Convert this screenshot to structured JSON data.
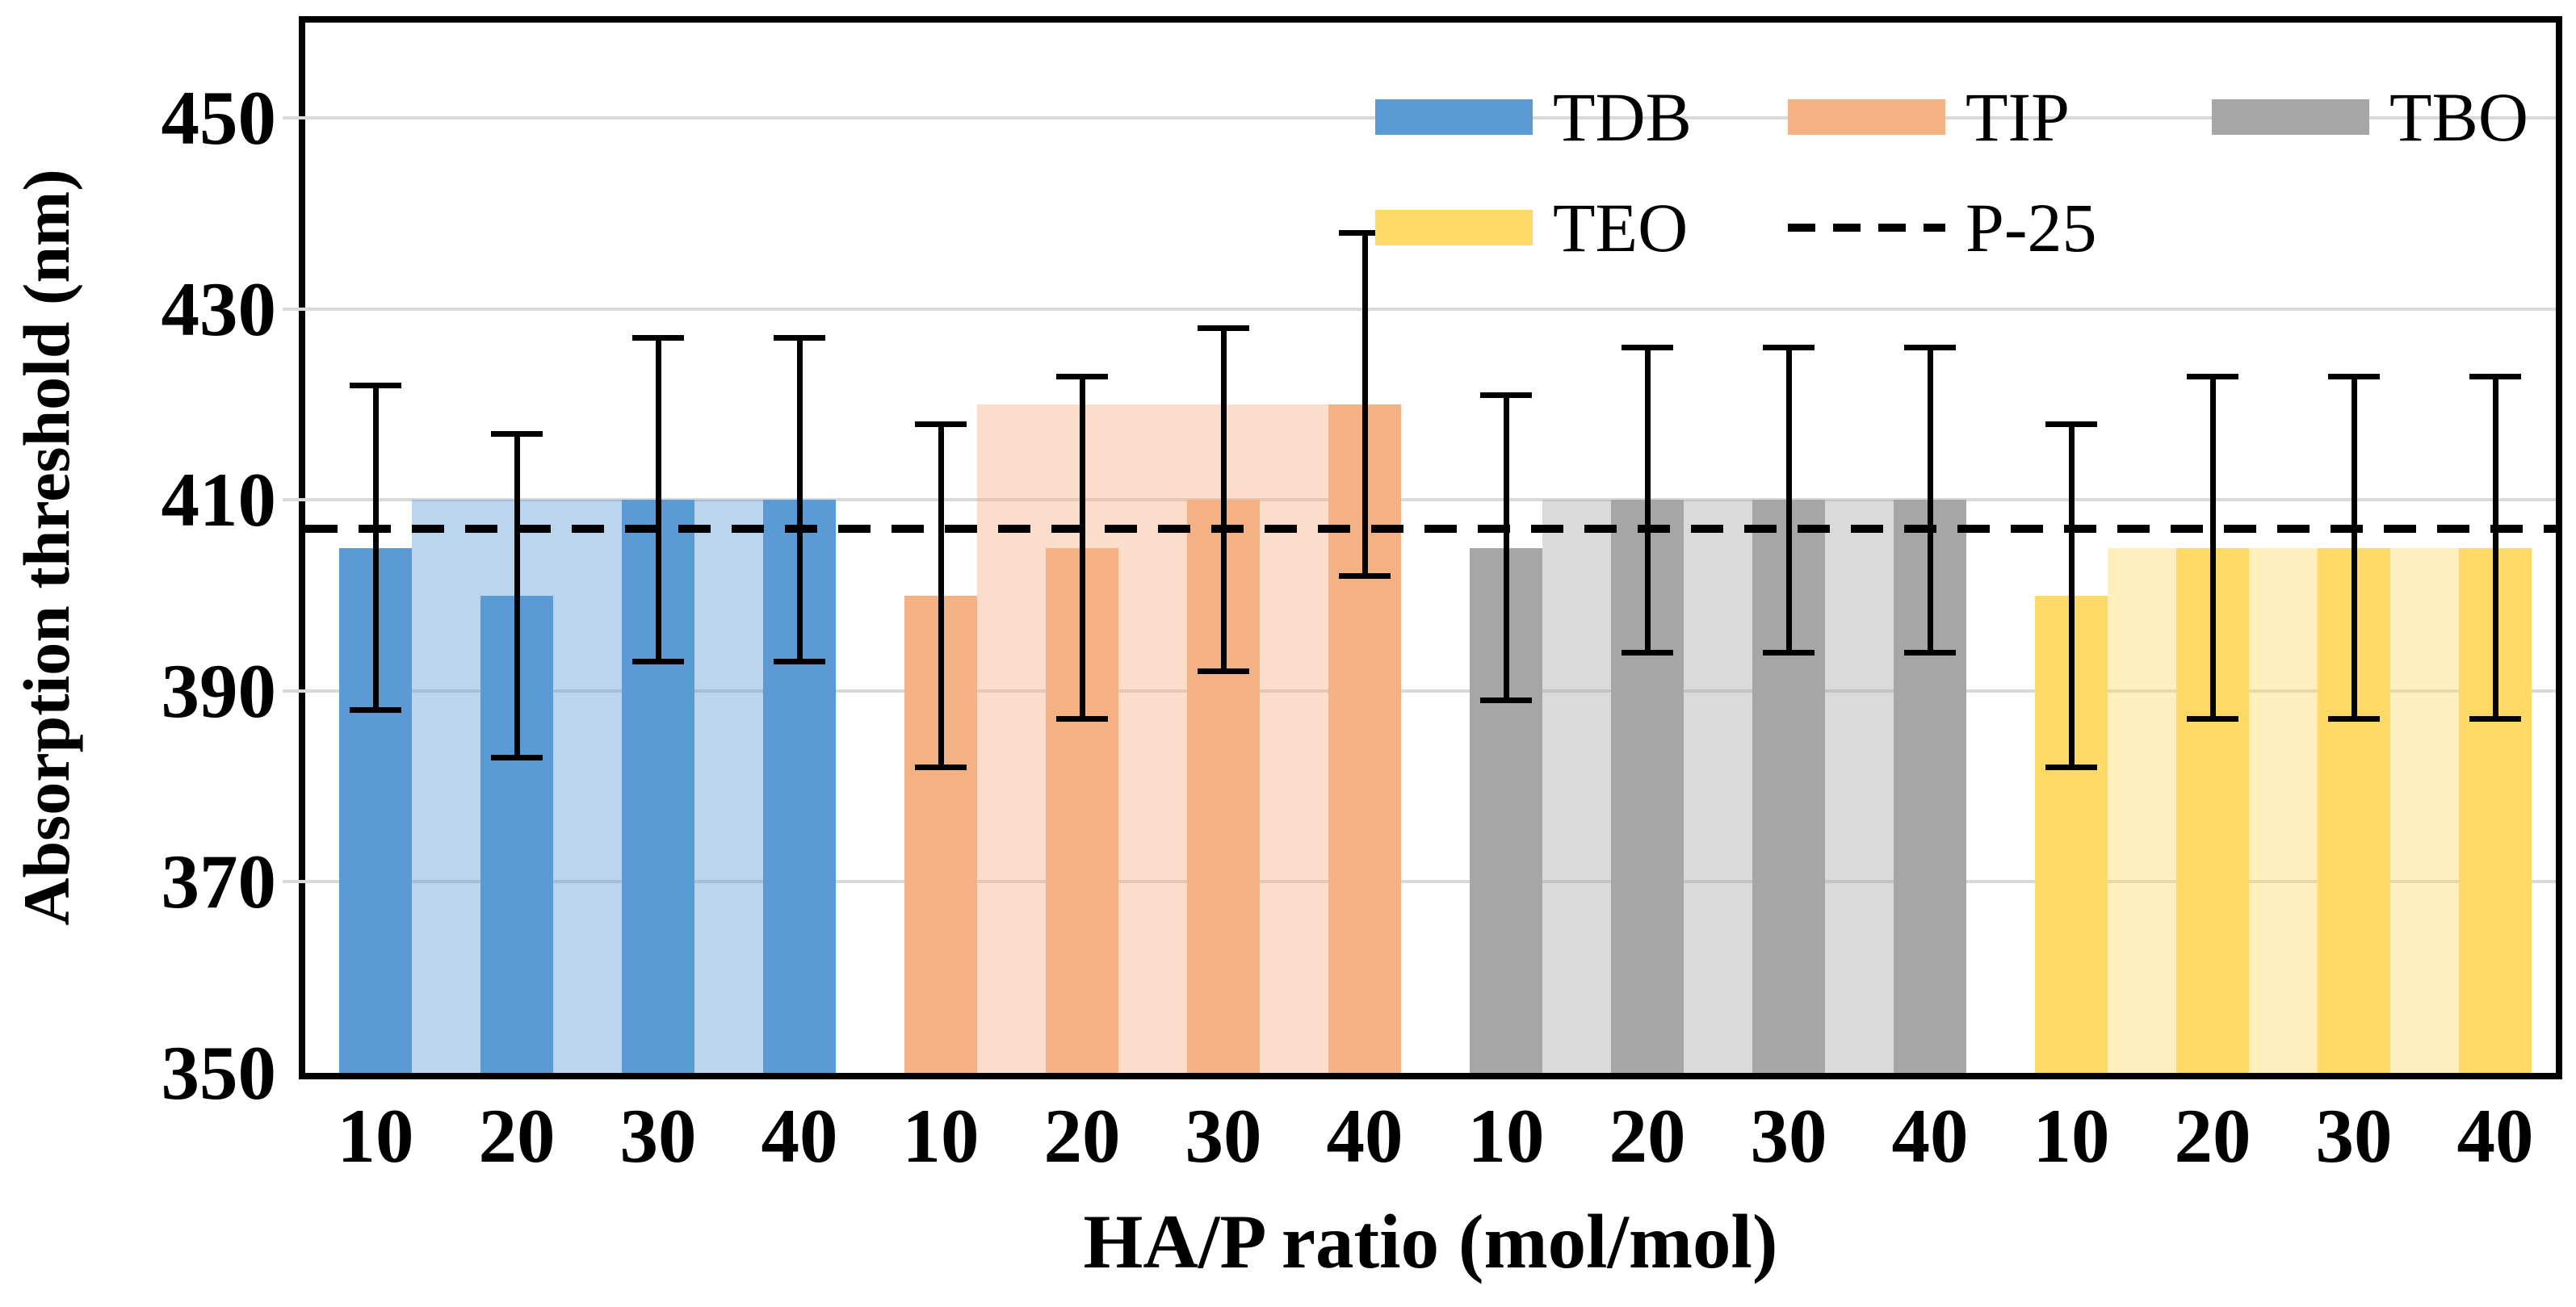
{
  "chart_data": {
    "type": "bar",
    "title": "",
    "xlabel": "HA/P ratio (mol/mol)",
    "ylabel": "Absorption threshold (nm)",
    "ylim": [
      350,
      460
    ],
    "y_ticks": [
      350,
      370,
      390,
      410,
      430,
      450
    ],
    "grid": true,
    "gridline_color": "#D9D9D9",
    "axis_color": "#000000",
    "text_color": "#000000",
    "categories": [
      "10",
      "20",
      "30",
      "40"
    ],
    "x_tick_labels": [
      "10",
      "20",
      "30",
      "40",
      "10",
      "20",
      "30",
      "40",
      "10",
      "20",
      "30",
      "40",
      "10",
      "20",
      "30",
      "40"
    ],
    "series": [
      {
        "name": "TDB",
        "color": "#5B9BD5",
        "light_fill": "#BDD7EE",
        "values": [
          405,
          400,
          410,
          410
        ],
        "errors": [
          17,
          17,
          17,
          17
        ],
        "group_fill_level": 410
      },
      {
        "name": "TIP",
        "color": "#F4B183",
        "light_fill": "#FBE5D6",
        "values": [
          400,
          405,
          410,
          420
        ],
        "errors": [
          18,
          18,
          18,
          18
        ],
        "group_fill_level": 420
      },
      {
        "name": "TBO",
        "color": "#A6A6A6",
        "light_fill": "#DBDBDB",
        "values": [
          405,
          410,
          410,
          410
        ],
        "errors": [
          16,
          16,
          16,
          16
        ],
        "group_fill_level": 410
      },
      {
        "name": "TEO",
        "color": "#FFD966",
        "light_fill": "#FFF1C5",
        "values": [
          400,
          405,
          405,
          405
        ],
        "errors": [
          18,
          18,
          18,
          18
        ],
        "group_fill_level": 405
      }
    ],
    "reference_line": {
      "name": "P-25",
      "value": 407,
      "color": "#000000",
      "style": "dashed"
    },
    "legend": {
      "position": "top-right-inside",
      "rows": [
        [
          "TDB",
          "TIP",
          "TBO"
        ],
        [
          "TEO",
          "P-25"
        ]
      ]
    }
  }
}
